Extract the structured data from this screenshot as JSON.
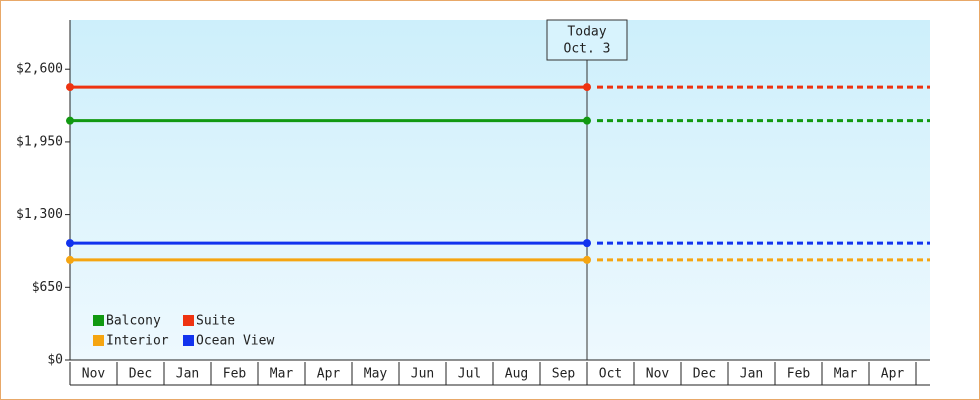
{
  "chart_data": {
    "type": "line",
    "categories": [
      "Nov",
      "Dec",
      "Jan",
      "Feb",
      "Mar",
      "Apr",
      "May",
      "Jun",
      "Jul",
      "Aug",
      "Sep",
      "Oct",
      "Nov",
      "Dec",
      "Jan",
      "Feb",
      "Mar",
      "Apr"
    ],
    "series": [
      {
        "name": "Balcony",
        "color": "#119911",
        "value": 2140
      },
      {
        "name": "Suite",
        "color": "#ee3311",
        "value": 2440
      },
      {
        "name": "Interior",
        "color": "#f5a511",
        "value": 895
      },
      {
        "name": "Ocean View",
        "color": "#1133ee",
        "value": 1045
      }
    ],
    "ylim": [
      0,
      3040
    ],
    "yticks": [
      {
        "value": 0,
        "label": "$0"
      },
      {
        "value": 650,
        "label": "$650"
      },
      {
        "value": 1300,
        "label": "$1,300"
      },
      {
        "value": 1950,
        "label": "$1,950"
      },
      {
        "value": 2600,
        "label": "$2,600"
      }
    ],
    "annotation": [
      "Today",
      "Oct. 3"
    ]
  }
}
